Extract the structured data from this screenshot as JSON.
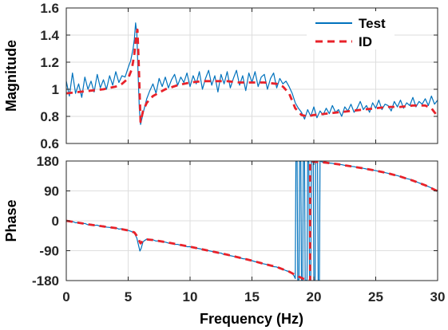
{
  "chart_data": [
    {
      "type": "line",
      "ylabel": "Magnitude",
      "xlim": [
        0,
        30
      ],
      "ylim": [
        0.6,
        1.6
      ],
      "yticks": [
        0.6,
        0.8,
        1,
        1.2,
        1.4,
        1.6
      ],
      "grid": true,
      "legend": "top-right",
      "series": [
        {
          "name": "Test",
          "color": "#0072BD",
          "dashed": false,
          "x": [
            0,
            0.25,
            0.5,
            0.75,
            1,
            1.25,
            1.5,
            1.75,
            2,
            2.25,
            2.5,
            2.75,
            3,
            3.25,
            3.5,
            3.75,
            4,
            4.25,
            4.5,
            4.75,
            5,
            5.2,
            5.4,
            5.5,
            5.6,
            5.7,
            5.8,
            5.9,
            6,
            6.25,
            6.5,
            6.75,
            7,
            7.25,
            7.5,
            7.75,
            8,
            8.25,
            8.5,
            8.75,
            9,
            9.25,
            9.5,
            9.75,
            10,
            10.25,
            10.5,
            10.75,
            11,
            11.25,
            11.5,
            11.75,
            12,
            12.25,
            12.5,
            12.75,
            13,
            13.25,
            13.5,
            13.75,
            14,
            14.25,
            14.5,
            14.75,
            15,
            15.25,
            15.5,
            15.75,
            16,
            16.25,
            16.5,
            16.75,
            17,
            17.25,
            17.5,
            17.75,
            18,
            18.25,
            18.5,
            18.75,
            19,
            19.25,
            19.5,
            19.75,
            20,
            20.25,
            20.5,
            20.75,
            21,
            21.25,
            21.5,
            21.75,
            22,
            22.25,
            22.5,
            22.75,
            23,
            23.25,
            23.5,
            23.75,
            24,
            24.25,
            24.5,
            24.75,
            25,
            25.25,
            25.5,
            25.75,
            26,
            26.25,
            26.5,
            26.75,
            27,
            27.25,
            27.5,
            27.75,
            28,
            28.25,
            28.5,
            28.75,
            29,
            29.25,
            29.5,
            29.75,
            30
          ],
          "y": [
            1.06,
            0.95,
            1.12,
            0.97,
            1.04,
            0.94,
            1.09,
            1.0,
            1.06,
            0.98,
            1.11,
            1.01,
            1.07,
            1.0,
            1.1,
            1.03,
            1.13,
            1.05,
            1.1,
            1.09,
            1.16,
            1.21,
            1.3,
            1.37,
            1.49,
            1.41,
            1.12,
            0.86,
            0.74,
            0.84,
            0.93,
            0.99,
            1.04,
            0.97,
            1.08,
            1.02,
            1.09,
            1.01,
            1.07,
            1.11,
            1.03,
            1.09,
            1.05,
            1.12,
            1.02,
            1.1,
            1.04,
            1.13,
            1.0,
            1.08,
            1.14,
            1.03,
            1.1,
            0.98,
            1.11,
            1.04,
            1.13,
            1.01,
            1.08,
            1.14,
            1.03,
            1.1,
            0.99,
            1.12,
            1.05,
            1.13,
            1.02,
            1.09,
            1.11,
            1.0,
            1.08,
            1.12,
            1.01,
            1.08,
            1.04,
            1.06,
            1.02,
            0.97,
            0.9,
            0.86,
            0.83,
            0.78,
            0.85,
            0.8,
            0.87,
            0.79,
            0.84,
            0.81,
            0.86,
            0.82,
            0.88,
            0.83,
            0.85,
            0.8,
            0.87,
            0.84,
            0.89,
            0.83,
            0.86,
            0.91,
            0.85,
            0.88,
            0.83,
            0.9,
            0.86,
            0.92,
            0.85,
            0.89,
            0.88,
            0.84,
            0.91,
            0.87,
            0.92,
            0.86,
            0.9,
            0.88,
            0.94,
            0.87,
            0.91,
            0.89,
            0.93,
            0.88,
            0.95,
            0.89,
            0.92
          ]
        },
        {
          "name": "ID",
          "color": "#E8222A",
          "dashed": true,
          "x": [
            0,
            1,
            2,
            3,
            4,
            4.5,
            5,
            5.3,
            5.5,
            5.65,
            5.75,
            5.85,
            6,
            6.2,
            6.5,
            7,
            8,
            9,
            10,
            11,
            12,
            13,
            14,
            15,
            16,
            17,
            17.5,
            18,
            18.5,
            19,
            19.5,
            20,
            21,
            22,
            23,
            24,
            25,
            26,
            27,
            28,
            29,
            29.5,
            30
          ],
          "y": [
            0.97,
            0.98,
            0.99,
            1.0,
            1.02,
            1.04,
            1.08,
            1.15,
            1.26,
            1.4,
            1.44,
            1.2,
            0.76,
            0.84,
            0.9,
            0.95,
            1.0,
            1.03,
            1.05,
            1.06,
            1.06,
            1.06,
            1.05,
            1.05,
            1.05,
            1.04,
            1.02,
            0.97,
            0.86,
            0.81,
            0.8,
            0.81,
            0.82,
            0.83,
            0.84,
            0.85,
            0.86,
            0.87,
            0.87,
            0.88,
            0.88,
            0.86,
            0.8
          ]
        }
      ]
    },
    {
      "type": "line",
      "ylabel": "Phase",
      "xlabel": "Frequency (Hz)",
      "xlim": [
        0,
        30
      ],
      "ylim": [
        -180,
        180
      ],
      "xticks": [
        0,
        5,
        10,
        15,
        20,
        25,
        30
      ],
      "yticks": [
        -180,
        -90,
        0,
        90,
        180
      ],
      "grid": true,
      "series": [
        {
          "color": "#0072BD",
          "dashed": false,
          "x": [
            0,
            0.25,
            0.5,
            0.75,
            1,
            1.25,
            1.5,
            1.75,
            2,
            2.25,
            2.5,
            2.75,
            3,
            3.25,
            3.5,
            3.75,
            4,
            4.25,
            4.5,
            4.75,
            5,
            5.25,
            5.5,
            5.7,
            5.85,
            5.95,
            6.05,
            6.2,
            6.5,
            6.75,
            7,
            7.25,
            7.5,
            7.75,
            8,
            8.25,
            8.5,
            8.75,
            9,
            9.25,
            9.5,
            9.75,
            10,
            10.25,
            10.5,
            10.75,
            11,
            11.25,
            11.5,
            11.75,
            12,
            12.25,
            12.5,
            12.75,
            13,
            13.25,
            13.5,
            13.75,
            14,
            14.25,
            14.5,
            14.75,
            15,
            15.25,
            15.5,
            15.75,
            16,
            16.25,
            16.5,
            16.75,
            17,
            17.25,
            17.5,
            17.75,
            18,
            18.25,
            18.4,
            18.5,
            18.55,
            18.65,
            18.7,
            18.8,
            18.85,
            18.95,
            19,
            19.1,
            19.15,
            19.25,
            19.3,
            19.45,
            19.5,
            19.6,
            19.65,
            19.75,
            19.8,
            19.95,
            20,
            20.1,
            20.15,
            20.3,
            20.35,
            20.45,
            20.5,
            20.75,
            21,
            21.25,
            21.5,
            21.75,
            22,
            22.25,
            22.5,
            22.75,
            23,
            23.25,
            23.5,
            23.75,
            24,
            24.25,
            24.5,
            24.75,
            25,
            25.25,
            25.5,
            25.75,
            26,
            26.25,
            26.5,
            26.75,
            27,
            27.25,
            27.5,
            27.75,
            28,
            28.25,
            28.5,
            28.75,
            29,
            29.25,
            29.5,
            29.75,
            30
          ],
          "y": [
            0,
            -3,
            -2,
            -6,
            -5,
            -9,
            -8,
            -12,
            -10,
            -14,
            -13,
            -17,
            -15,
            -19,
            -20,
            -22,
            -21,
            -25,
            -24,
            -27,
            -29,
            -32,
            -37,
            -52,
            -76,
            -91,
            -83,
            -63,
            -55,
            -59,
            -57,
            -61,
            -60,
            -64,
            -64,
            -67,
            -67,
            -71,
            -71,
            -74,
            -74,
            -78,
            -78,
            -81,
            -82,
            -84,
            -86,
            -88,
            -90,
            -92,
            -94,
            -97,
            -97,
            -102,
            -102,
            -105,
            -107,
            -109,
            -111,
            -114,
            -115,
            -119,
            -120,
            -123,
            -124,
            -128,
            -130,
            -132,
            -135,
            -138,
            -139,
            -144,
            -146,
            -150,
            -153,
            -159,
            -166,
            -174,
            180,
            179,
            -180,
            -177,
            180,
            178,
            -180,
            -178,
            180,
            179,
            -180,
            -179,
            180,
            177,
            -180,
            -180,
            180,
            178,
            -180,
            -179,
            180,
            178,
            -180,
            -179,
            180,
            176,
            175,
            174,
            173,
            171,
            170,
            169,
            167,
            166,
            164,
            163,
            161,
            160,
            158,
            156,
            155,
            153,
            151,
            149,
            147,
            145,
            143,
            140,
            138,
            136,
            133,
            130,
            127,
            125,
            121,
            118,
            114,
            111,
            107,
            103,
            99,
            94,
            89
          ]
        },
        {
          "color": "#E8222A",
          "dashed": true,
          "x": [
            0,
            1,
            2,
            3,
            4,
            5,
            5.5,
            5.75,
            6,
            6.2,
            6.5,
            7,
            8,
            9,
            10,
            11,
            12,
            13,
            14,
            15,
            16,
            17,
            18,
            18.5,
            19,
            19.3,
            19.7,
            19.7,
            20,
            21,
            22,
            23,
            24,
            25,
            26,
            27,
            28,
            29,
            30
          ],
          "y": [
            0,
            -6,
            -12,
            -17,
            -22,
            -29,
            -35,
            -48,
            -68,
            -60,
            -56,
            -58,
            -64,
            -71,
            -78,
            -86,
            -94,
            -102,
            -111,
            -120,
            -130,
            -139,
            -153,
            -163,
            -172,
            -177,
            -180,
            180,
            178,
            175,
            170,
            164,
            158,
            151,
            143,
            133,
            121,
            107,
            89
          ]
        }
      ]
    }
  ]
}
